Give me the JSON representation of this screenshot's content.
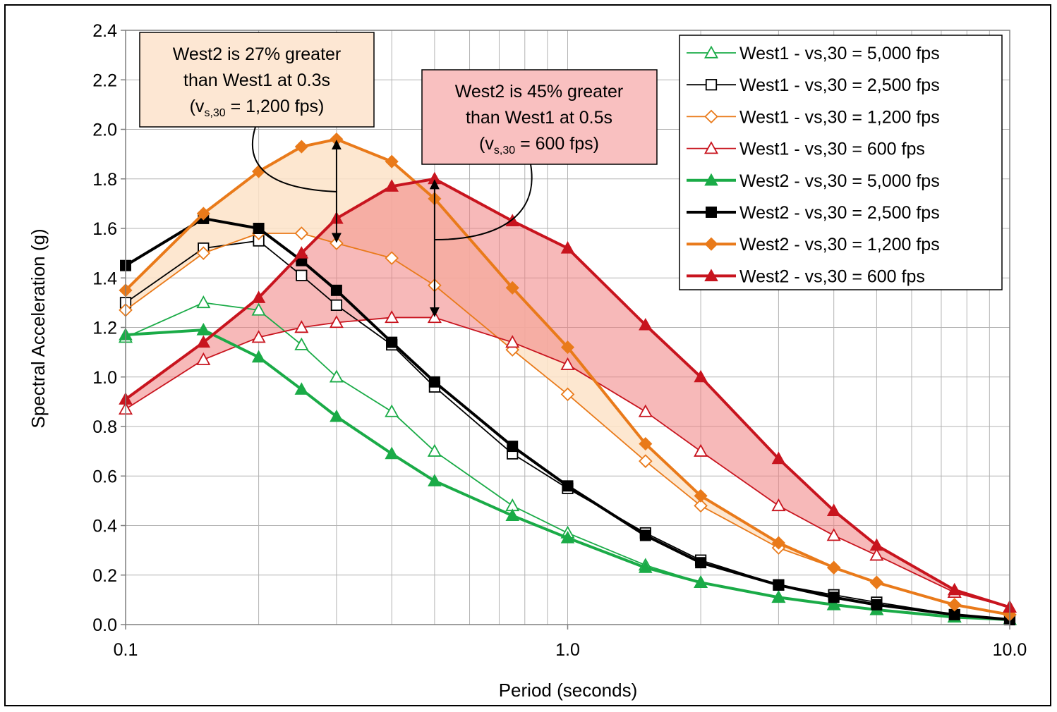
{
  "chart_data": {
    "type": "line",
    "xlabel": "Period (seconds)",
    "ylabel": "Spectral Acceleration (g)",
    "xscale": "log",
    "xlim": [
      0.1,
      10.0
    ],
    "ylim": [
      0.0,
      2.4
    ],
    "grid": true,
    "legend_position": "top-right",
    "x_ticks": [
      "0.1",
      "1.0",
      "10.0"
    ],
    "y_ticks": [
      "0.0",
      "0.2",
      "0.4",
      "0.6",
      "0.8",
      "1.0",
      "1.2",
      "1.4",
      "1.6",
      "1.8",
      "2.0",
      "2.2",
      "2.4"
    ],
    "x": [
      0.1,
      0.15,
      0.2,
      0.25,
      0.3,
      0.4,
      0.5,
      0.75,
      1.0,
      1.5,
      2.0,
      3.0,
      4.0,
      5.0,
      7.5,
      10.0
    ],
    "series": [
      {
        "name": "West1 - vs,30 = 5,000 fps",
        "color": "#1aab47",
        "marker": "triangle-open",
        "line": "thin",
        "values": [
          1.16,
          1.3,
          1.27,
          1.13,
          1.0,
          0.86,
          0.7,
          0.48,
          0.37,
          0.24,
          0.17,
          0.11,
          0.08,
          0.06,
          0.03,
          0.02
        ]
      },
      {
        "name": "West1 - vs,30 = 2,500 fps",
        "color": "#000000",
        "marker": "square-open",
        "line": "thin",
        "values": [
          1.3,
          1.52,
          1.55,
          1.41,
          1.29,
          1.13,
          0.96,
          0.69,
          0.55,
          0.37,
          0.26,
          0.16,
          0.12,
          0.09,
          0.04,
          0.02
        ]
      },
      {
        "name": "West1 - vs,30 = 1,200 fps",
        "color": "#e97a1a",
        "marker": "diamond-open",
        "line": "thin",
        "values": [
          1.27,
          1.5,
          1.58,
          1.58,
          1.54,
          1.48,
          1.37,
          1.11,
          0.93,
          0.66,
          0.48,
          0.31,
          0.23,
          0.17,
          0.08,
          0.04
        ]
      },
      {
        "name": "West1 - vs,30 = 600 fps",
        "color": "#c8141e",
        "marker": "triangle-open",
        "line": "thin",
        "values": [
          0.87,
          1.07,
          1.16,
          1.2,
          1.22,
          1.24,
          1.24,
          1.14,
          1.05,
          0.86,
          0.7,
          0.48,
          0.36,
          0.28,
          0.13,
          0.07
        ]
      },
      {
        "name": "West2 - vs,30 = 5,000 fps",
        "color": "#1aab47",
        "marker": "triangle-filled",
        "line": "thick",
        "values": [
          1.17,
          1.19,
          1.08,
          0.95,
          0.84,
          0.69,
          0.58,
          0.44,
          0.35,
          0.23,
          0.17,
          0.11,
          0.08,
          0.06,
          0.03,
          0.02
        ]
      },
      {
        "name": "West2 - vs,30 = 2,500 fps",
        "color": "#000000",
        "marker": "square-filled",
        "line": "thick",
        "values": [
          1.45,
          1.64,
          1.6,
          1.47,
          1.35,
          1.14,
          0.98,
          0.72,
          0.56,
          0.36,
          0.25,
          0.16,
          0.11,
          0.08,
          0.04,
          0.02
        ]
      },
      {
        "name": "West2 - vs,30 = 1,200 fps",
        "color": "#e97a1a",
        "marker": "diamond-filled",
        "line": "thick",
        "values": [
          1.35,
          1.66,
          1.83,
          1.93,
          1.96,
          1.87,
          1.72,
          1.36,
          1.12,
          0.73,
          0.52,
          0.33,
          0.23,
          0.17,
          0.08,
          0.04
        ]
      },
      {
        "name": "West2 - vs,30 = 600 fps",
        "color": "#c8141e",
        "marker": "triangle-filled",
        "line": "thick",
        "values": [
          0.91,
          1.14,
          1.32,
          1.5,
          1.64,
          1.77,
          1.8,
          1.63,
          1.52,
          1.21,
          1.0,
          0.67,
          0.46,
          0.32,
          0.14,
          0.07
        ]
      }
    ],
    "shaded_regions": [
      {
        "between": [
          2,
          6
        ],
        "color": "#fde3c8"
      },
      {
        "between": [
          3,
          7
        ],
        "color": "#f08080"
      }
    ],
    "annotations": [
      {
        "id": "ann1",
        "lines": [
          "West2 is 27% greater",
          "than West1 at 0.3s",
          "(v",
          "s,30",
          " = 1,200 fps)"
        ],
        "fill": "#fde7d3",
        "arrow_x": 0.3,
        "arrow_y": [
          1.54,
          1.96
        ]
      },
      {
        "id": "ann2",
        "lines": [
          "West2 is 45% greater",
          "than West1 at 0.5s",
          "(v",
          "s,30",
          " = 600 fps)"
        ],
        "fill": "#f9c0c0",
        "arrow_x": 0.5,
        "arrow_y": [
          1.24,
          1.8
        ]
      }
    ]
  }
}
